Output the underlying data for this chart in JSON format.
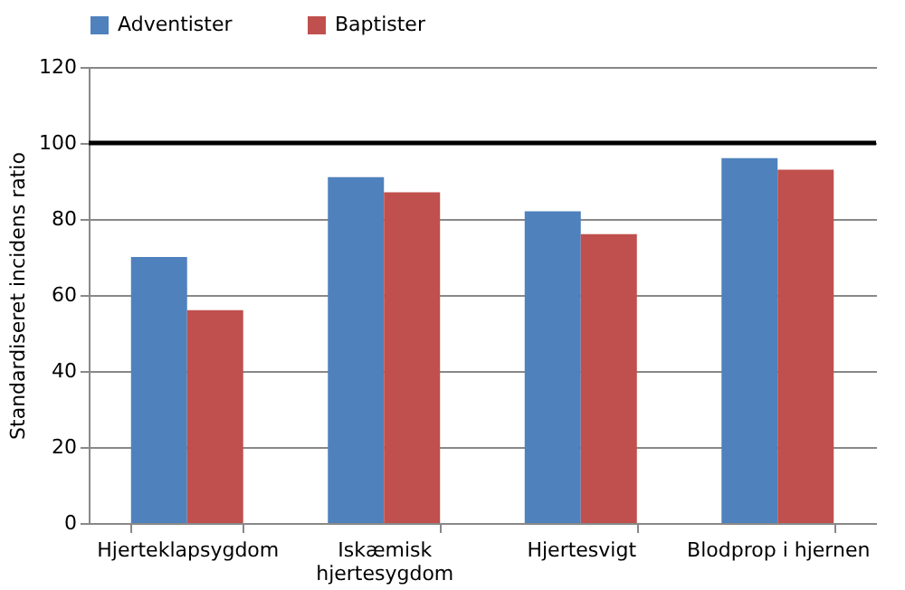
{
  "chart_data": {
    "type": "bar",
    "ylabel": "Standardiseret incidens ratio",
    "categories": [
      "Hjerteklapsygdom",
      "Iskæmisk hjertesygdom",
      "Hjertesvigt",
      "Blodprop i hjernen"
    ],
    "series": [
      {
        "name": "Adventister",
        "color": "#4f81bd",
        "values": [
          70,
          91,
          82,
          96
        ]
      },
      {
        "name": "Baptister",
        "color": "#c0504d",
        "values": [
          56,
          87,
          76,
          93
        ]
      }
    ],
    "ylim": [
      0,
      120
    ],
    "yticks": [
      0,
      20,
      40,
      60,
      80,
      100,
      120
    ],
    "grid": "y",
    "legend": "top",
    "ref_lines": [
      {
        "axis": "y",
        "value": 100,
        "color": "#000000"
      }
    ]
  }
}
